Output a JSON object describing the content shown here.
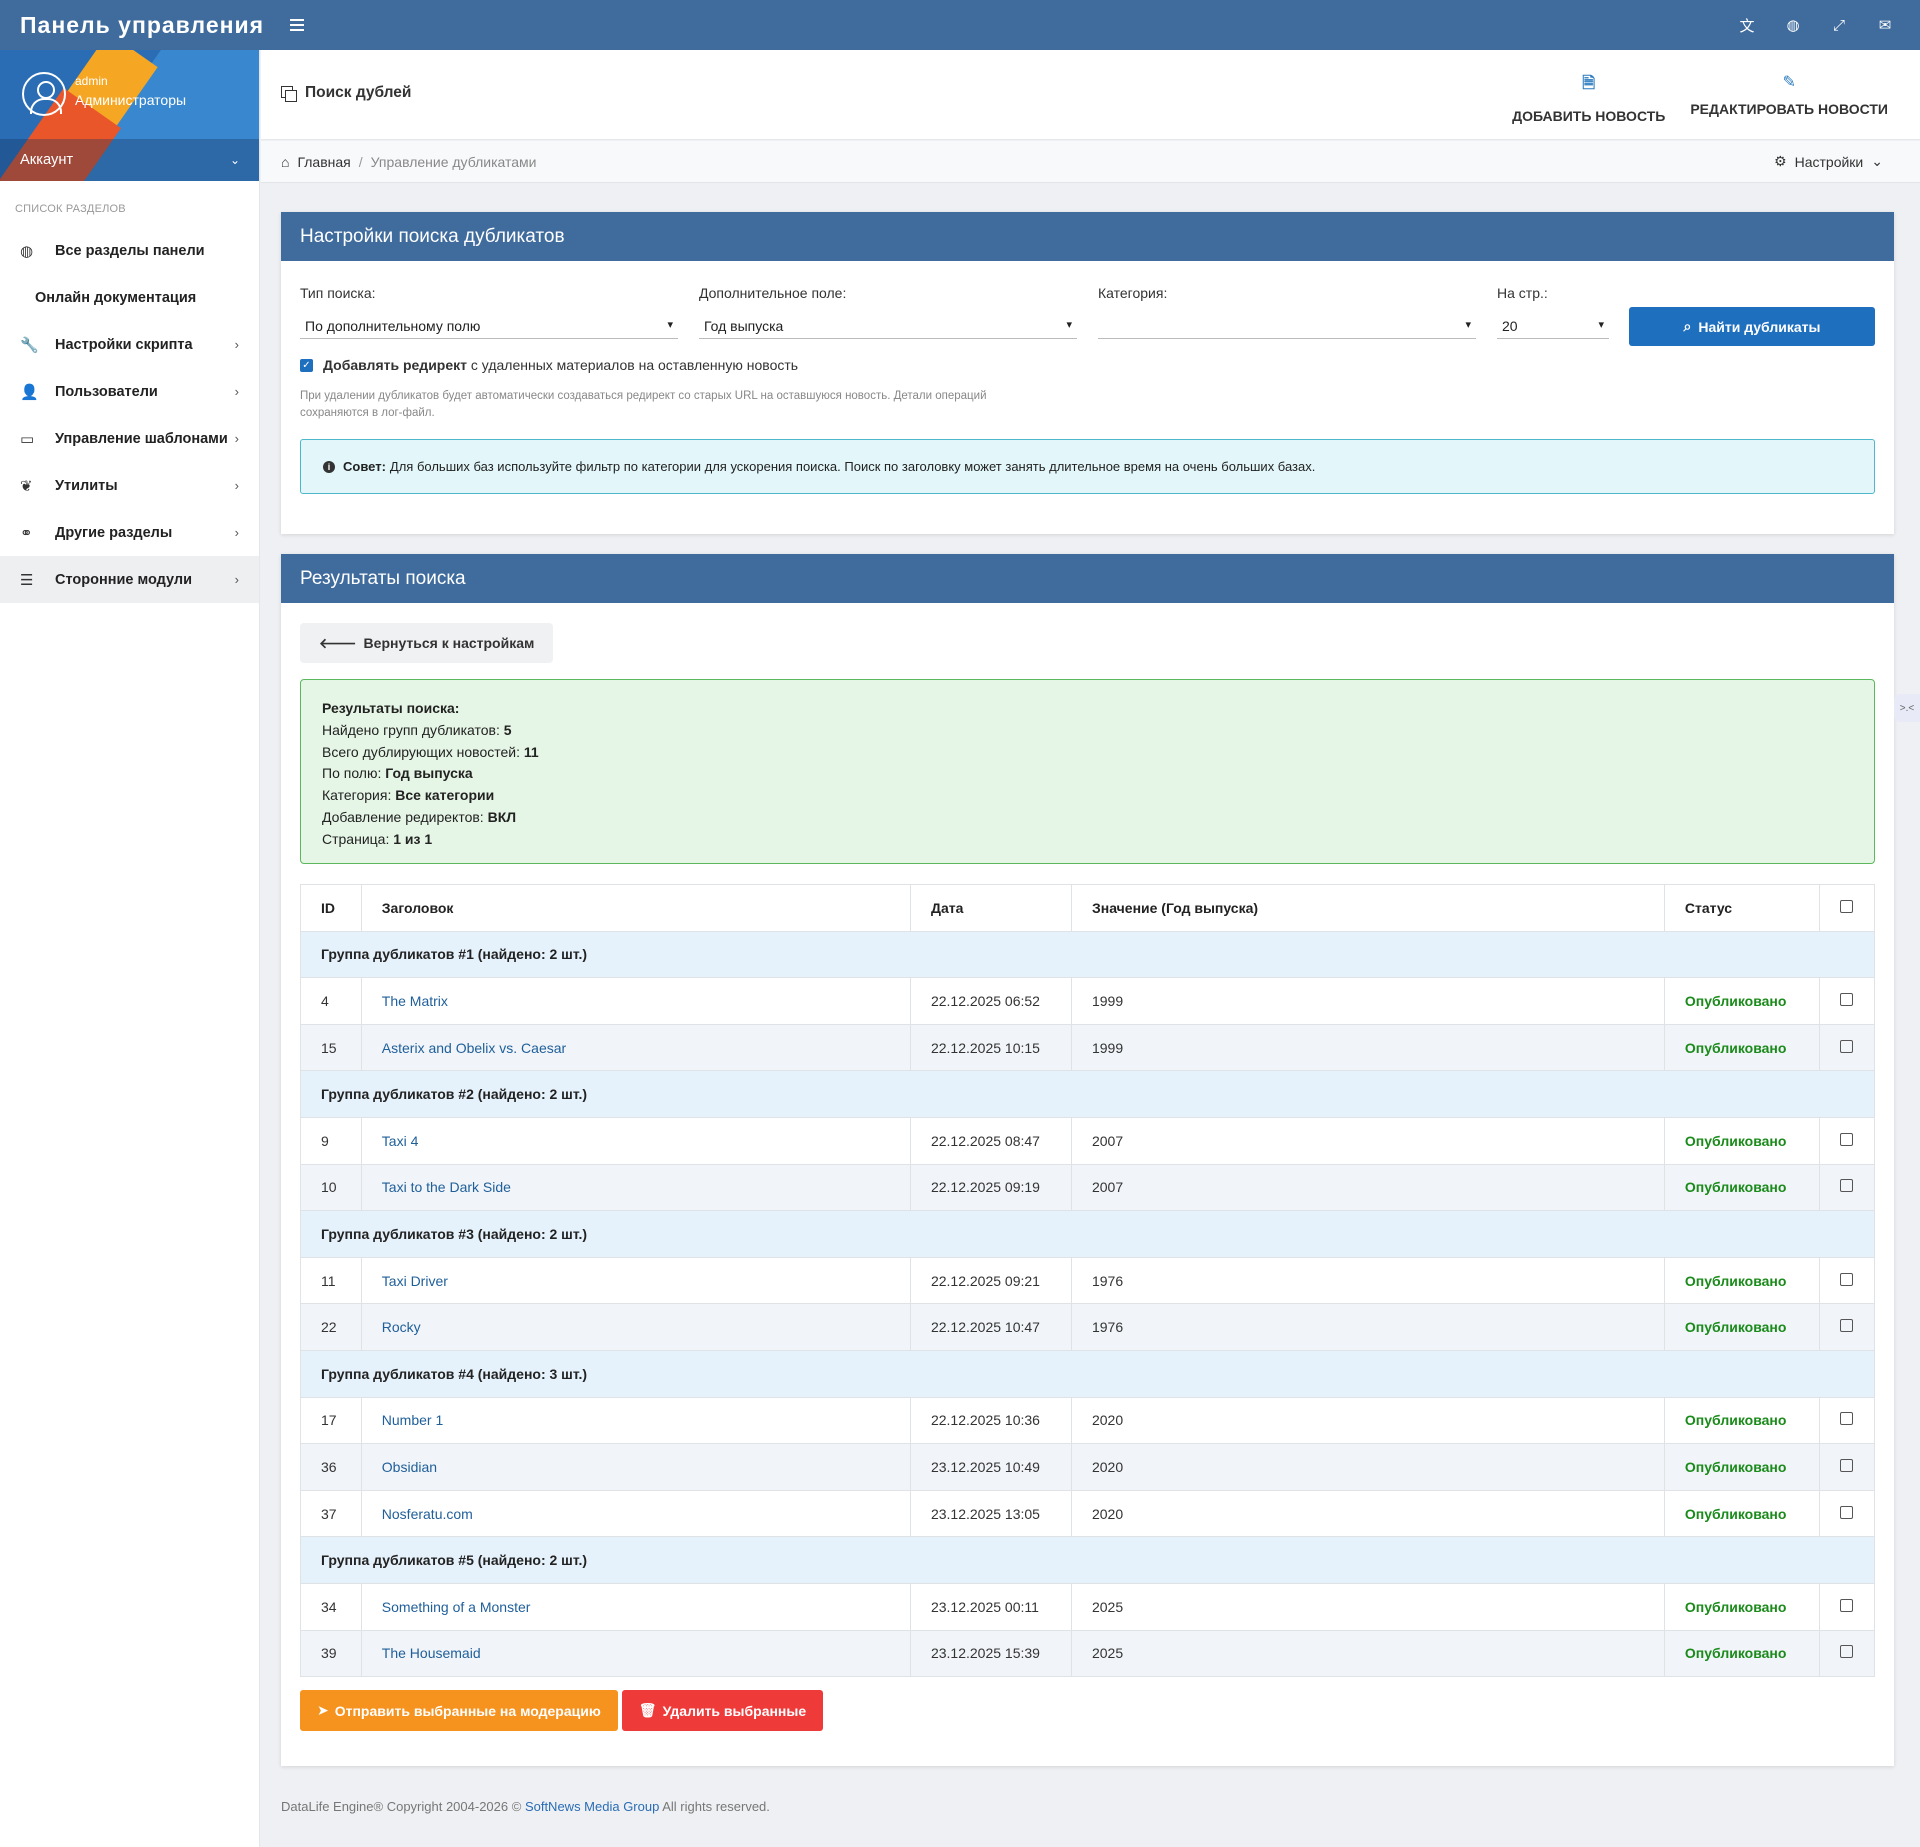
{
  "topbar": {
    "brand": "Панель управления",
    "icons": [
      "translate-icon",
      "globe-icon",
      "expand-icon",
      "envelope-icon"
    ]
  },
  "sidebar": {
    "user": {
      "name": "admin",
      "role": "Администраторы"
    },
    "account_label": "Аккаунт",
    "section_header": "Список разделов",
    "items": [
      {
        "label": "Все разделы панели",
        "icon": "globe-icon",
        "has_children": false
      },
      {
        "label": "Онлайн документация",
        "icon": "",
        "has_children": false
      },
      {
        "label": "Настройки скрипта",
        "icon": "wrench-icon",
        "has_children": true
      },
      {
        "label": "Пользователи",
        "icon": "user-icon",
        "has_children": true
      },
      {
        "label": "Управление шаблонами",
        "icon": "laptop-icon",
        "has_children": true
      },
      {
        "label": "Утилиты",
        "icon": "leaf-icon",
        "has_children": true
      },
      {
        "label": "Другие разделы",
        "icon": "link-icon",
        "has_children": true
      },
      {
        "label": "Сторонние модули",
        "icon": "list-icon",
        "has_children": true
      }
    ]
  },
  "header": {
    "title": "Поиск дублей",
    "actions": [
      {
        "label": "ДОБАВИТЬ НОВОСТЬ",
        "icon": "file-icon"
      },
      {
        "label": "РЕДАКТИРОВАТЬ НОВОСТИ",
        "icon": "edit-icon"
      }
    ]
  },
  "breadcrumb": {
    "home": "Главная",
    "current": "Управление дубликатами",
    "settings": "Настройки"
  },
  "search_settings": {
    "title": "Настройки поиска дубликатов",
    "search_type_label": "Тип поиска:",
    "search_type_value": "По дополнительному полю",
    "extra_field_label": "Дополнительное поле:",
    "extra_field_value": "Год выпуска",
    "category_label": "Категория:",
    "category_value": "",
    "per_page_label": "На стр.:",
    "per_page_value": "20",
    "find_button": "Найти дубликаты",
    "redirect_bold": "Добавлять редирект",
    "redirect_rest": "с удаленных материалов на оставленную новость",
    "redirect_checked": true,
    "help_text": "При удалении дубликатов будет автоматически создаваться редирект со старых URL на оставшуюся новость. Детали операций сохраняются в лог-файл.",
    "tip_bold": "Совет:",
    "tip_text": "Для больших баз используйте фильтр по категории для ускорения поиска. Поиск по заголовку может занять длительное время на очень больших базах."
  },
  "results": {
    "title": "Результаты поиска",
    "back_button": "Вернуться к настройкам",
    "summary": {
      "heading": "Результаты поиска:",
      "groups_label": "Найдено групп дубликатов:",
      "groups_value": "5",
      "total_label": "Всего дублирующих новостей:",
      "total_value": "11",
      "field_label": "По полю:",
      "field_value": "Год выпуска",
      "category_label": "Категория:",
      "category_value": "Все категории",
      "redirect_label": "Добавление редиректов:",
      "redirect_value": "ВКЛ",
      "page_label": "Страница:",
      "page_value": "1 из 1"
    },
    "columns": {
      "id": "ID",
      "title": "Заголовок",
      "date": "Дата",
      "value": "Значение (Год выпуска)",
      "status": "Статус"
    },
    "groups": [
      {
        "label": "Группа дубликатов #1 (найдено: 2 шт.)",
        "rows": [
          {
            "id": "4",
            "title": "The Matrix",
            "date": "22.12.2025 06:52",
            "value": "1999",
            "status": "Опубликовано"
          },
          {
            "id": "15",
            "title": "Asterix and Obelix vs. Caesar",
            "date": "22.12.2025 10:15",
            "value": "1999",
            "status": "Опубликовано"
          }
        ]
      },
      {
        "label": "Группа дубликатов #2 (найдено: 2 шт.)",
        "rows": [
          {
            "id": "9",
            "title": "Taxi 4",
            "date": "22.12.2025 08:47",
            "value": "2007",
            "status": "Опубликовано"
          },
          {
            "id": "10",
            "title": "Taxi to the Dark Side",
            "date": "22.12.2025 09:19",
            "value": "2007",
            "status": "Опубликовано"
          }
        ]
      },
      {
        "label": "Группа дубликатов #3 (найдено: 2 шт.)",
        "rows": [
          {
            "id": "11",
            "title": "Taxi Driver",
            "date": "22.12.2025 09:21",
            "value": "1976",
            "status": "Опубликовано"
          },
          {
            "id": "22",
            "title": "Rocky",
            "date": "22.12.2025 10:47",
            "value": "1976",
            "status": "Опубликовано"
          }
        ]
      },
      {
        "label": "Группа дубликатов #4 (найдено: 3 шт.)",
        "rows": [
          {
            "id": "17",
            "title": "Number 1",
            "date": "22.12.2025 10:36",
            "value": "2020",
            "status": "Опубликовано"
          },
          {
            "id": "36",
            "title": "Obsidian",
            "date": "23.12.2025 10:49",
            "value": "2020",
            "status": "Опубликовано"
          },
          {
            "id": "37",
            "title": "Nosferatu.com",
            "date": "23.12.2025 13:05",
            "value": "2020",
            "status": "Опубликовано"
          }
        ]
      },
      {
        "label": "Группа дубликатов #5 (найдено: 2 шт.)",
        "rows": [
          {
            "id": "34",
            "title": "Something of a Monster",
            "date": "23.12.2025 00:11",
            "value": "2025",
            "status": "Опубликовано"
          },
          {
            "id": "39",
            "title": "The Housemaid",
            "date": "23.12.2025 15:39",
            "value": "2025",
            "status": "Опубликовано"
          }
        ]
      }
    ],
    "moderate_button": "Отправить выбранные на модерацию",
    "delete_button": "Удалить выбранные"
  },
  "footer": {
    "prefix": "DataLife Engine® Copyright 2004-2026 ©",
    "link": "SoftNews Media Group",
    "suffix": "All rights reserved."
  },
  "colors": {
    "primary": "#3f6b9d",
    "accent": "#1f6fbf",
    "success": "#1a8a1a",
    "orange": "#f6921e",
    "danger": "#ef3a3a"
  }
}
